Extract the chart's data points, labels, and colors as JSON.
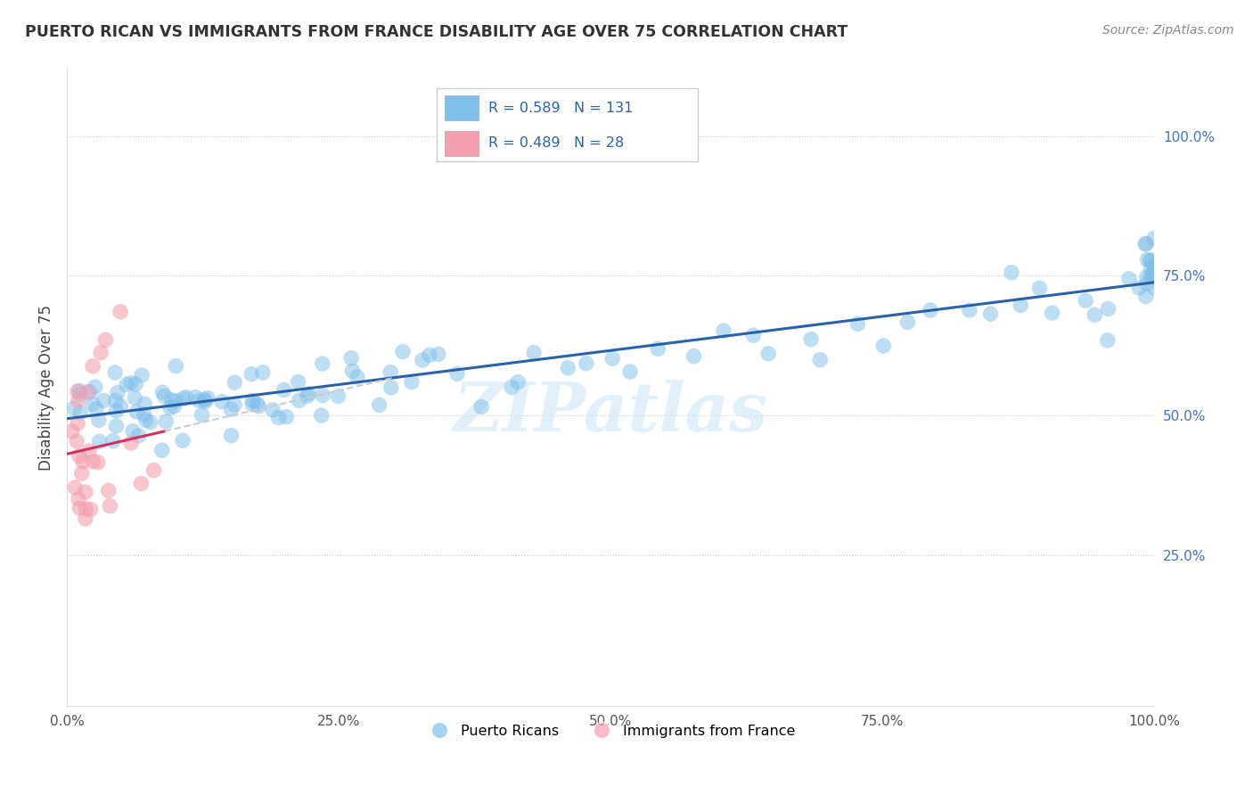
{
  "title": "PUERTO RICAN VS IMMIGRANTS FROM FRANCE DISABILITY AGE OVER 75 CORRELATION CHART",
  "source": "Source: ZipAtlas.com",
  "ylabel": "Disability Age Over 75",
  "blue_R": 0.589,
  "blue_N": 131,
  "pink_R": 0.489,
  "pink_N": 28,
  "blue_color": "#7fbfea",
  "pink_color": "#f4a0b0",
  "blue_line_color": "#2962a8",
  "pink_line_color": "#d63060",
  "legend_text_color": "#2962a8",
  "watermark": "ZIPatlas",
  "legend_label_blue": "Puerto Ricans",
  "legend_label_pink": "Immigrants from France",
  "xlim": [
    0.0,
    1.0
  ],
  "ylim": [
    -0.02,
    1.12
  ],
  "ytick_positions": [
    0.0,
    0.25,
    0.5,
    0.75,
    1.0
  ],
  "ytick_labels_right": [
    "",
    "25.0%",
    "50.0%",
    "75.0%",
    "100.0%"
  ],
  "xtick_positions": [
    0.0,
    0.25,
    0.5,
    0.75,
    1.0
  ],
  "xtick_labels": [
    "0.0%",
    "25.0%",
    "50.0%",
    "75.0%",
    "100.0%"
  ],
  "blue_seed": 12,
  "pink_seed": 99,
  "blue_x_points": [
    0.01,
    0.01,
    0.02,
    0.02,
    0.02,
    0.02,
    0.03,
    0.03,
    0.03,
    0.03,
    0.03,
    0.04,
    0.04,
    0.04,
    0.04,
    0.05,
    0.05,
    0.05,
    0.05,
    0.06,
    0.06,
    0.06,
    0.06,
    0.07,
    0.07,
    0.07,
    0.08,
    0.08,
    0.08,
    0.08,
    0.09,
    0.09,
    0.09,
    0.09,
    0.1,
    0.1,
    0.1,
    0.1,
    0.1,
    0.11,
    0.11,
    0.11,
    0.12,
    0.12,
    0.12,
    0.13,
    0.13,
    0.14,
    0.14,
    0.14,
    0.15,
    0.15,
    0.16,
    0.16,
    0.17,
    0.17,
    0.17,
    0.18,
    0.18,
    0.19,
    0.19,
    0.2,
    0.2,
    0.21,
    0.21,
    0.22,
    0.23,
    0.23,
    0.24,
    0.24,
    0.25,
    0.26,
    0.26,
    0.27,
    0.28,
    0.29,
    0.3,
    0.31,
    0.32,
    0.33,
    0.34,
    0.35,
    0.36,
    0.38,
    0.4,
    0.42,
    0.44,
    0.46,
    0.48,
    0.5,
    0.52,
    0.55,
    0.58,
    0.6,
    0.63,
    0.65,
    0.68,
    0.7,
    0.73,
    0.75,
    0.78,
    0.8,
    0.83,
    0.85,
    0.87,
    0.88,
    0.9,
    0.91,
    0.93,
    0.94,
    0.95,
    0.96,
    0.97,
    0.98,
    0.99,
    1.0,
    1.0,
    1.0,
    1.0,
    1.0,
    1.0,
    1.0,
    1.0,
    1.0,
    1.0,
    1.0,
    1.0,
    1.0,
    1.0,
    1.0,
    1.0
  ],
  "blue_y_points": [
    0.53,
    0.51,
    0.5,
    0.54,
    0.52,
    0.49,
    0.48,
    0.51,
    0.53,
    0.55,
    0.5,
    0.52,
    0.49,
    0.51,
    0.54,
    0.5,
    0.52,
    0.48,
    0.55,
    0.51,
    0.53,
    0.49,
    0.57,
    0.52,
    0.5,
    0.54,
    0.51,
    0.53,
    0.55,
    0.48,
    0.5,
    0.52,
    0.54,
    0.57,
    0.49,
    0.51,
    0.53,
    0.55,
    0.58,
    0.5,
    0.52,
    0.54,
    0.51,
    0.53,
    0.56,
    0.52,
    0.54,
    0.5,
    0.53,
    0.55,
    0.51,
    0.54,
    0.52,
    0.55,
    0.53,
    0.56,
    0.5,
    0.54,
    0.57,
    0.52,
    0.55,
    0.53,
    0.56,
    0.54,
    0.57,
    0.55,
    0.53,
    0.56,
    0.54,
    0.58,
    0.55,
    0.56,
    0.59,
    0.57,
    0.55,
    0.58,
    0.56,
    0.57,
    0.58,
    0.56,
    0.57,
    0.59,
    0.58,
    0.57,
    0.59,
    0.58,
    0.6,
    0.59,
    0.61,
    0.6,
    0.62,
    0.61,
    0.63,
    0.62,
    0.64,
    0.63,
    0.65,
    0.64,
    0.66,
    0.65,
    0.67,
    0.66,
    0.68,
    0.67,
    0.69,
    0.68,
    0.7,
    0.69,
    0.71,
    0.7,
    0.72,
    0.71,
    0.73,
    0.72,
    0.74,
    0.73,
    0.75,
    0.74,
    0.76,
    0.75,
    0.77,
    0.76,
    0.78,
    0.77,
    0.79,
    0.78,
    0.8,
    0.79,
    0.81,
    0.8,
    0.82
  ],
  "pink_x_points": [
    0.005,
    0.005,
    0.007,
    0.008,
    0.01,
    0.01,
    0.01,
    0.012,
    0.012,
    0.015,
    0.015,
    0.016,
    0.017,
    0.018,
    0.02,
    0.02,
    0.02,
    0.025,
    0.025,
    0.03,
    0.03,
    0.035,
    0.04,
    0.04,
    0.05,
    0.06,
    0.07,
    0.08
  ],
  "pink_y_points": [
    0.47,
    0.44,
    0.38,
    0.35,
    0.51,
    0.48,
    0.42,
    0.39,
    0.36,
    0.53,
    0.45,
    0.32,
    0.29,
    0.55,
    0.41,
    0.38,
    0.35,
    0.58,
    0.43,
    0.62,
    0.4,
    0.65,
    0.37,
    0.34,
    0.68,
    0.44,
    0.38,
    0.42
  ]
}
